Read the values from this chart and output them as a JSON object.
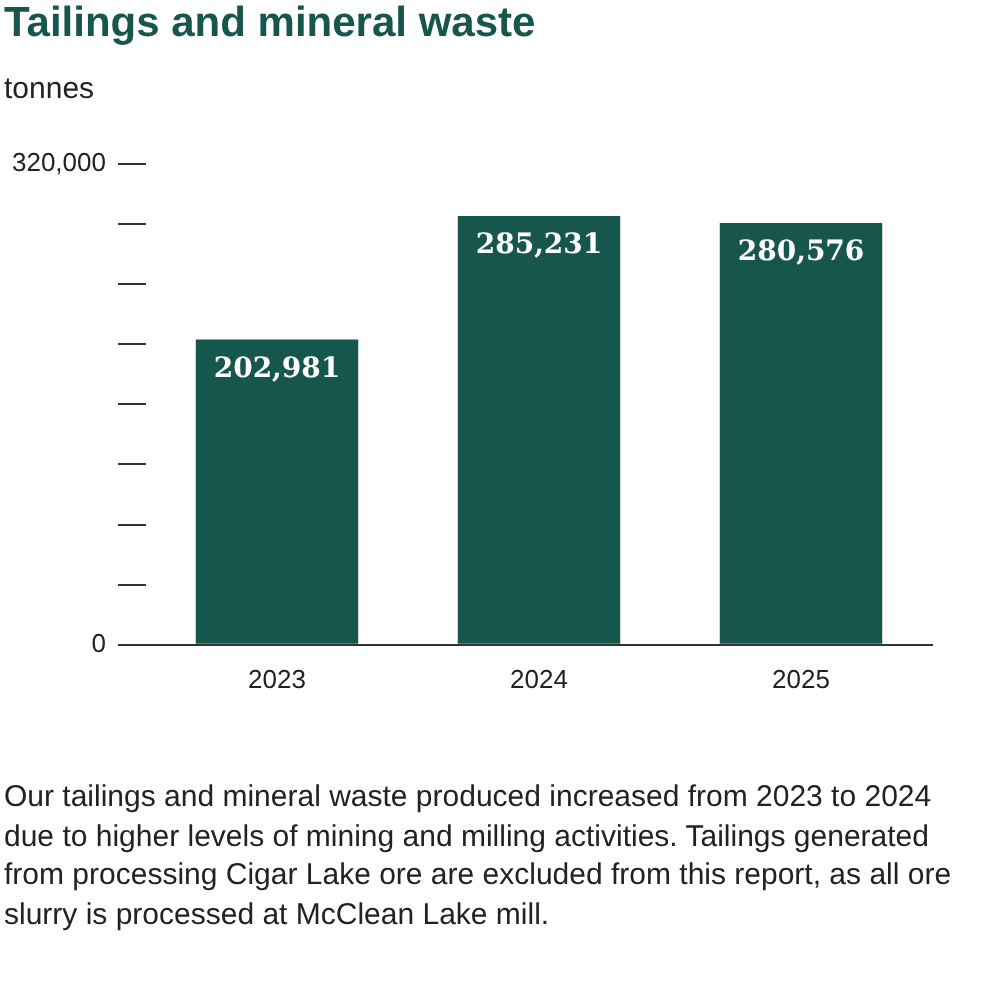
{
  "chart_data": {
    "type": "bar",
    "title": "Tailings and mineral waste",
    "ylabel": "tonnes",
    "categories": [
      "2023",
      "2024",
      "2025"
    ],
    "values": [
      202981,
      285231,
      280576
    ],
    "value_labels": [
      "202,981",
      "285,231",
      "280,576"
    ],
    "color": "#17564c",
    "ylim": [
      0,
      320000
    ],
    "yticks": [
      0,
      {
        "value": 40000,
        "label": null
      },
      {
        "value": 80000,
        "label": null
      },
      {
        "value": 120000,
        "label": null
      },
      {
        "value": 160000,
        "label": null
      },
      {
        "value": 200000,
        "label": null
      },
      {
        "value": 240000,
        "label": null
      },
      {
        "value": 280000,
        "label": null
      },
      {
        "value": 320000,
        "label": "320,000"
      }
    ],
    "grid": false,
    "legend": false,
    "annotations": [
      "Our tailings and mineral waste produced increased from 2023 to 2024 due to higher levels of mining and milling activities. Tailings generated from processing Cigar Lake ore are excluded from this report, as all ore slurry is processed at McClean Lake mill."
    ]
  }
}
